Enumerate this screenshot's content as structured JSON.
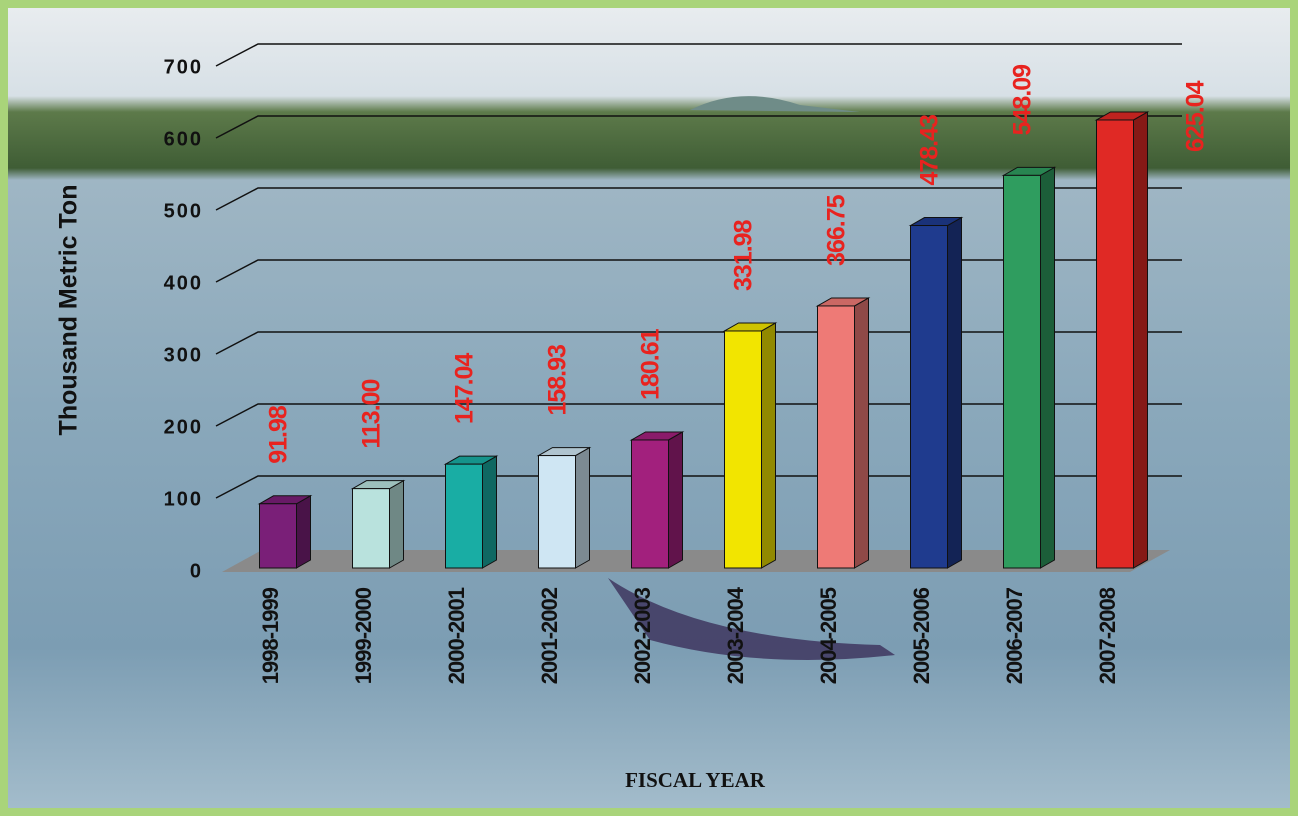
{
  "chart_data": {
    "type": "bar3d",
    "y_label": "Thousand Metric Ton",
    "x_label": "FISCAL YEAR",
    "categories": [
      "1998-1999",
      "1999-2000",
      "2000-2001",
      "2001-2002",
      "2002-2003",
      "2003-2004",
      "2004-2005",
      "2005-2006",
      "2006-2007",
      "2007-2008"
    ],
    "values": [
      91.98,
      113.0,
      147.04,
      158.93,
      180.61,
      331.98,
      366.75,
      478.43,
      548.09,
      625.04
    ],
    "value_labels": [
      "91.98",
      "113.00",
      "147.04",
      "158.93",
      "180.61",
      "331.98",
      "366.75",
      "478.43",
      "548.09",
      "625.04"
    ],
    "colors": [
      "#7a1f78",
      "#b9e2dd",
      "#19ada4",
      "#cfe6f3",
      "#a2207d",
      "#f2e500",
      "#ee7a76",
      "#1f3b8e",
      "#2f9d5f",
      "#e02925"
    ],
    "label_color": "#e8231f",
    "ylim": [
      0,
      700
    ],
    "yticks": [
      0,
      100,
      200,
      300,
      400,
      500,
      600,
      700
    ],
    "grid": true
  }
}
